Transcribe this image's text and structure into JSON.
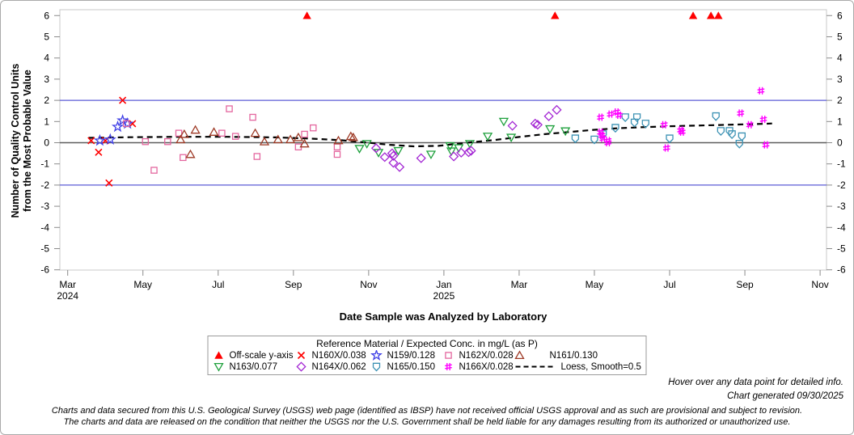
{
  "page": {
    "hover_note": "Hover over any data point for detailed info.",
    "generated": "Chart generated 09/30/2025",
    "disclaimer1": "Charts and data secured from this U.S. Geological Survey (USGS) web page (identified as IBSP) have not received official USGS approval and as such are provisional and subject to revision.",
    "disclaimer2": "The charts and data are released on the condition that neither the USGS nor the U.S. Government shall be held liable for any damages resulting from its authorized or unauthorized use."
  },
  "chart_data": {
    "type": "scatter",
    "xlabel": "Date Sample was Analyzed by Laboratory",
    "ylabel": "Number of Quality Control Units from the Most Probable Value",
    "ylabel_lines": [
      "Number of Quality Control Units",
      "from the Most Probable Value"
    ],
    "ylim": [
      -6,
      6
    ],
    "yticks": [
      6,
      5,
      4,
      3,
      2,
      1,
      0,
      -1,
      -2,
      -3,
      -4,
      -5,
      -6
    ],
    "xrange": [
      "2024-03-01",
      "2025-11-01"
    ],
    "xticks": [
      {
        "label": "Mar",
        "year": "2024",
        "date": "2024-03-01"
      },
      {
        "label": "May",
        "date": "2024-05-01"
      },
      {
        "label": "Jul",
        "date": "2024-07-01"
      },
      {
        "label": "Sep",
        "date": "2024-09-01"
      },
      {
        "label": "Nov",
        "date": "2024-11-01"
      },
      {
        "label": "Jan",
        "year": "2025",
        "date": "2025-01-01"
      },
      {
        "label": "Mar",
        "date": "2025-03-01"
      },
      {
        "label": "May",
        "date": "2025-05-01"
      },
      {
        "label": "Jul",
        "date": "2025-07-01"
      },
      {
        "label": "Sep",
        "date": "2025-09-01"
      },
      {
        "label": "Nov",
        "date": "2025-11-01"
      }
    ],
    "reference_lines": {
      "center": 0,
      "upper": 2,
      "lower": -2
    },
    "colors": {
      "control_limit": "#5b5bd6",
      "center_line": "#5e5e5e",
      "frame": "#c9c9c9",
      "tick": "#8a8a8a"
    },
    "legend_title": "Reference Material / Expected Conc. in mg/L (as P)",
    "legend_rows": [
      [
        "off_scale",
        "n160x",
        "n159",
        "n162x",
        "n161"
      ],
      [
        "n163",
        "n164x",
        "n165",
        "n166x",
        "loess"
      ]
    ],
    "series": [
      {
        "id": "off_scale",
        "label": "Off-scale y-axis",
        "marker": "triangle-filled",
        "color": "#ff0000",
        "points": [
          [
            "2024-09-12",
            6
          ],
          [
            "2025-03-30",
            6
          ],
          [
            "2025-07-20",
            6
          ],
          [
            "2025-08-04",
            6
          ],
          [
            "2025-08-10",
            6
          ]
        ]
      },
      {
        "id": "n160x",
        "label": "N160X/0.038",
        "marker": "x",
        "color": "#ff0000",
        "points": [
          [
            "2024-03-20",
            0.1
          ],
          [
            "2024-03-26",
            -0.45
          ],
          [
            "2024-04-01",
            0.1
          ],
          [
            "2024-04-04",
            -1.9
          ],
          [
            "2024-04-15",
            2.0
          ],
          [
            "2024-04-23",
            0.9
          ]
        ]
      },
      {
        "id": "n159",
        "label": "N159/0.128",
        "marker": "star",
        "color": "#3f3fe6",
        "points": [
          [
            "2024-03-27",
            0.1
          ],
          [
            "2024-04-05",
            0.15
          ],
          [
            "2024-04-11",
            0.75
          ],
          [
            "2024-04-15",
            1.05
          ],
          [
            "2024-04-19",
            0.9
          ]
        ]
      },
      {
        "id": "n162x",
        "label": "N162X/0.028",
        "marker": "square",
        "color": "#e4679f",
        "points": [
          [
            "2024-04-18",
            0.9
          ],
          [
            "2024-05-03",
            0.05
          ],
          [
            "2024-05-10",
            -1.3
          ],
          [
            "2024-05-21",
            0.05
          ],
          [
            "2024-05-30",
            0.45
          ],
          [
            "2024-06-03",
            -0.7
          ],
          [
            "2024-07-04",
            0.45
          ],
          [
            "2024-07-10",
            1.6
          ],
          [
            "2024-07-15",
            0.3
          ],
          [
            "2024-07-29",
            1.2
          ],
          [
            "2024-08-02",
            -0.65
          ],
          [
            "2024-09-05",
            -0.2
          ],
          [
            "2024-09-10",
            0.4
          ],
          [
            "2024-09-17",
            0.7
          ],
          [
            "2024-10-06",
            -0.2
          ],
          [
            "2024-10-06",
            -0.55
          ]
        ]
      },
      {
        "id": "n161",
        "label": "N161/0.130",
        "marker": "triangle",
        "color": "#9e3a26",
        "points": [
          [
            "2024-06-01",
            0.15
          ],
          [
            "2024-06-04",
            0.4
          ],
          [
            "2024-06-09",
            -0.55
          ],
          [
            "2024-06-13",
            0.6
          ],
          [
            "2024-06-28",
            0.5
          ],
          [
            "2024-07-31",
            0.45
          ],
          [
            "2024-08-08",
            0.05
          ],
          [
            "2024-08-19",
            0.15
          ],
          [
            "2024-08-29",
            0.15
          ],
          [
            "2024-09-05",
            0.25
          ],
          [
            "2024-09-10",
            -0.05
          ],
          [
            "2024-10-07",
            0.1
          ],
          [
            "2024-10-17",
            0.3
          ],
          [
            "2024-10-19",
            0.25
          ]
        ]
      },
      {
        "id": "n163",
        "label": "N163/0.077",
        "marker": "triangle-down",
        "color": "#1ea03c",
        "points": [
          [
            "2024-10-24",
            -0.28
          ],
          [
            "2024-10-30",
            -0.05
          ],
          [
            "2024-11-09",
            -0.47
          ],
          [
            "2024-11-25",
            -0.38
          ],
          [
            "2024-12-21",
            -0.55
          ],
          [
            "2025-01-06",
            -0.15
          ],
          [
            "2025-01-07",
            -0.4
          ],
          [
            "2025-01-13",
            -0.25
          ],
          [
            "2025-01-22",
            -0.05
          ],
          [
            "2025-02-06",
            0.3
          ],
          [
            "2025-02-19",
            1.0
          ],
          [
            "2025-02-25",
            0.25
          ],
          [
            "2025-03-26",
            0.65
          ],
          [
            "2025-04-08",
            0.55
          ]
        ]
      },
      {
        "id": "n164x",
        "label": "N164X/0.062",
        "marker": "diamond",
        "color": "#a428d4",
        "points": [
          [
            "2024-11-07",
            -0.26
          ],
          [
            "2024-11-14",
            -0.68
          ],
          [
            "2024-11-20",
            -0.5
          ],
          [
            "2024-11-21",
            -0.62
          ],
          [
            "2024-11-21",
            -0.95
          ],
          [
            "2024-11-26",
            -1.15
          ],
          [
            "2024-12-13",
            -0.73
          ],
          [
            "2025-01-09",
            -0.65
          ],
          [
            "2025-01-15",
            -0.47
          ],
          [
            "2025-01-21",
            -0.45
          ],
          [
            "2025-01-23",
            -0.38
          ],
          [
            "2025-02-26",
            0.8
          ],
          [
            "2025-03-14",
            0.9
          ],
          [
            "2025-03-16",
            0.85
          ],
          [
            "2025-03-25",
            1.25
          ],
          [
            "2025-04-01",
            1.55
          ]
        ]
      },
      {
        "id": "n165",
        "label": "N165/0.150",
        "marker": "homedown",
        "color": "#3c92b4",
        "points": [
          [
            "2025-04-16",
            0.2
          ],
          [
            "2025-05-01",
            0.15
          ],
          [
            "2025-05-08",
            0.4
          ],
          [
            "2025-05-18",
            0.7
          ],
          [
            "2025-05-26",
            1.2
          ],
          [
            "2025-06-03",
            0.95
          ],
          [
            "2025-06-05",
            1.2
          ],
          [
            "2025-06-12",
            0.9
          ],
          [
            "2025-07-01",
            0.2
          ],
          [
            "2025-08-08",
            1.25
          ],
          [
            "2025-08-12",
            0.55
          ],
          [
            "2025-08-19",
            0.55
          ],
          [
            "2025-08-21",
            0.4
          ],
          [
            "2025-08-27",
            -0.05
          ],
          [
            "2025-08-29",
            0.3
          ]
        ]
      },
      {
        "id": "n166x",
        "label": "N166X/0.028",
        "marker": "hash",
        "color": "#ff00ff",
        "points": [
          [
            "2025-05-06",
            1.2
          ],
          [
            "2025-05-14",
            1.35
          ],
          [
            "2025-05-19",
            1.45
          ],
          [
            "2025-05-21",
            1.3
          ],
          [
            "2025-05-06",
            0.5
          ],
          [
            "2025-05-07",
            0.35
          ],
          [
            "2025-05-08",
            0.2
          ],
          [
            "2025-05-12",
            0.1
          ],
          [
            "2025-05-12",
            0.0
          ],
          [
            "2025-06-27",
            0.85
          ],
          [
            "2025-06-29",
            -0.25
          ],
          [
            "2025-07-10",
            0.6
          ],
          [
            "2025-07-11",
            0.5
          ],
          [
            "2025-08-28",
            1.4
          ],
          [
            "2025-09-05",
            0.85
          ],
          [
            "2025-09-14",
            2.45
          ],
          [
            "2025-09-16",
            1.1
          ],
          [
            "2025-09-18",
            -0.1
          ]
        ]
      },
      {
        "id": "loess",
        "label": "Loess, Smooth=0.5",
        "marker": "dashed-line",
        "color": "#000000",
        "points": [
          [
            "2024-03-18",
            0.23
          ],
          [
            "2024-04-21",
            0.26
          ],
          [
            "2024-05-30",
            0.28
          ],
          [
            "2024-07-08",
            0.28
          ],
          [
            "2024-08-17",
            0.25
          ],
          [
            "2024-09-13",
            0.2
          ],
          [
            "2024-10-09",
            0.12
          ],
          [
            "2024-10-28",
            0.02
          ],
          [
            "2024-11-18",
            -0.1
          ],
          [
            "2024-12-07",
            -0.17
          ],
          [
            "2024-12-27",
            -0.15
          ],
          [
            "2025-01-09",
            -0.07
          ],
          [
            "2025-01-23",
            0.02
          ],
          [
            "2025-02-12",
            0.13
          ],
          [
            "2025-03-01",
            0.27
          ],
          [
            "2025-03-21",
            0.4
          ],
          [
            "2025-04-10",
            0.5
          ],
          [
            "2025-04-29",
            0.6
          ],
          [
            "2025-05-19",
            0.68
          ],
          [
            "2025-06-08",
            0.73
          ],
          [
            "2025-06-28",
            0.77
          ],
          [
            "2025-07-17",
            0.8
          ],
          [
            "2025-08-06",
            0.83
          ],
          [
            "2025-08-26",
            0.86
          ],
          [
            "2025-09-15",
            0.89
          ],
          [
            "2025-09-23",
            0.91
          ]
        ]
      }
    ]
  }
}
